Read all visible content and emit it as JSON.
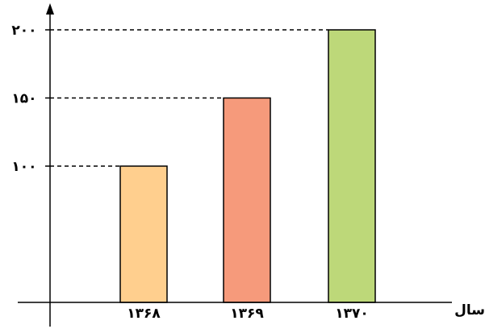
{
  "chart_data": {
    "type": "bar",
    "title": "",
    "xlabel": "سال",
    "ylabel": "",
    "categories": [
      "۱۳۶۸",
      "۱۳۶۹",
      "۱۳۷۰"
    ],
    "values": [
      100,
      150,
      200
    ],
    "bar_colors": [
      "#FFCF8E",
      "#F69A7B",
      "#BDD879"
    ],
    "y_ticks": [
      100,
      150,
      200
    ],
    "y_tick_labels": [
      "۱۰۰",
      "۱۵۰",
      "۲۰۰"
    ],
    "ylim": [
      0,
      200
    ],
    "grid": false,
    "reference_lines": "dashed",
    "legend": "none"
  }
}
